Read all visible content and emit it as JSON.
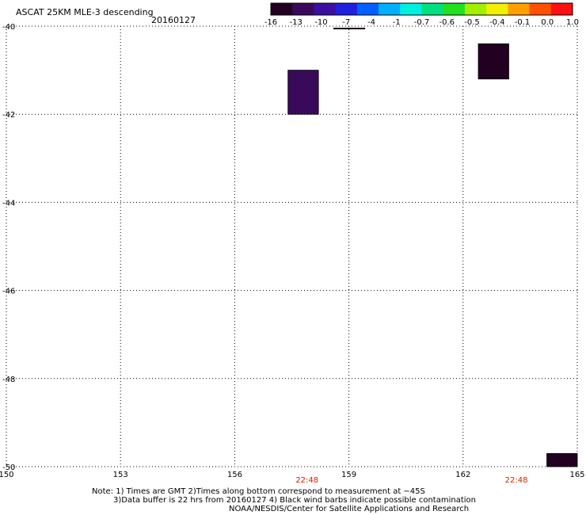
{
  "header": {
    "title": "ASCAT 25KM MLE-3 descending",
    "date": "20160127"
  },
  "colorbar": {
    "labels": [
      "-16",
      "-13",
      "-10",
      "-7",
      "-4",
      "-1",
      "-0.7",
      "-0.6",
      "-0.5",
      "-0.4",
      "-0.1",
      "0.0",
      "1.0"
    ],
    "colors": [
      "#220022",
      "#3a0a5a",
      "#3a10a0",
      "#2020e0",
      "#0060ff",
      "#00b0ff",
      "#00f0e0",
      "#00e080",
      "#20e020",
      "#a0f000",
      "#f0f000",
      "#ffa000",
      "#ff5000",
      "#ff1010"
    ]
  },
  "notes": {
    "line1": "Note: 1) Times are GMT 2)Times along bottom correspond to measurement at −45S",
    "line2": "3)Data buffer is 22 hrs from 20160127 4) Black wind barbs indicate possible contamination",
    "line3": "NOAA/NESDIS/Center for Satellite Applications and Research"
  },
  "chart_data": {
    "type": "heatmap",
    "title": "ASCAT 25KM MLE-3 descending",
    "xlim": [
      150,
      165
    ],
    "ylim": [
      -50,
      -40
    ],
    "x_ticks": [
      150,
      153,
      156,
      159,
      162,
      165
    ],
    "y_ticks": [
      -40,
      -42,
      -44,
      -46,
      -48,
      -50
    ],
    "x_tick_labels": [
      "150",
      "153",
      "156",
      "159",
      "162",
      "165"
    ],
    "y_tick_labels": [
      "-40",
      "-42",
      "-44",
      "-46",
      "-48",
      "-50"
    ],
    "time_labels": [
      {
        "x": 157.9,
        "label": "22:48"
      },
      {
        "x": 163.4,
        "label": "22:48"
      }
    ],
    "grid": true,
    "cells": [
      {
        "lon": [
          157.4,
          158.2
        ],
        "lat": [
          -42.0,
          -41.0
        ],
        "color": "#3a0a5a"
      },
      {
        "lon": [
          162.4,
          163.2
        ],
        "lat": [
          -41.2,
          -40.4
        ],
        "color": "#220022"
      },
      {
        "lon": [
          164.2,
          165.0
        ],
        "lat": [
          -50.0,
          -49.7
        ],
        "color": "#220022"
      }
    ]
  }
}
